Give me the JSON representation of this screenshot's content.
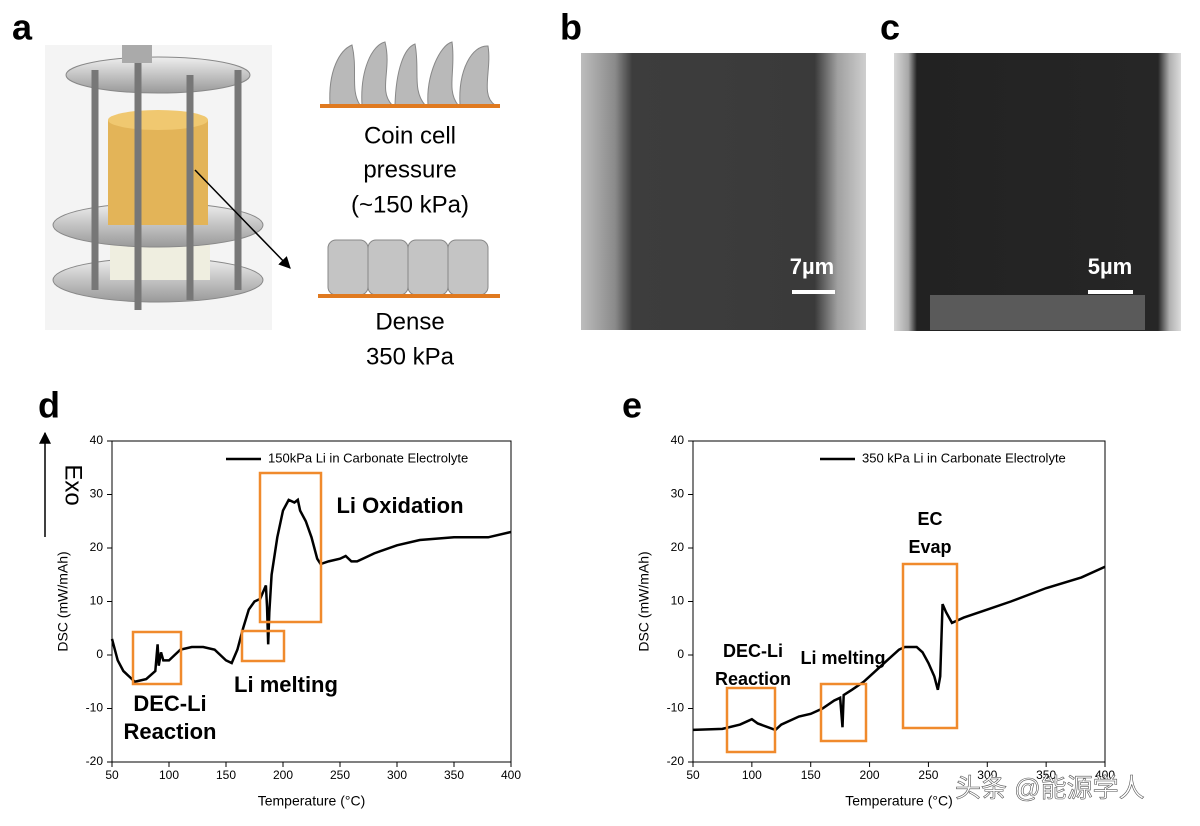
{
  "panel_labels": [
    "a",
    "b",
    "c",
    "d",
    "e"
  ],
  "panel_a": {
    "top_label": [
      "Coin cell",
      "pressure",
      "(~150 kPa)"
    ],
    "bottom_label": [
      "Dense",
      "350 kPa"
    ]
  },
  "panel_b": {
    "scale_bar": "7µm"
  },
  "panel_c": {
    "scale_bar": "5µm"
  },
  "exo_label": "Exo",
  "watermark": "头条 @能源学人",
  "chart_data": [
    {
      "type": "line",
      "xlabel": "Temperature (°C)",
      "ylabel": "DSC (mW/mAh)",
      "xlim": [
        50,
        400
      ],
      "ylim": [
        -20,
        40
      ],
      "xticks": [
        50,
        100,
        150,
        200,
        250,
        300,
        350,
        400
      ],
      "yticks": [
        -20,
        -10,
        0,
        10,
        20,
        30,
        40
      ],
      "legend": "top right",
      "box_color": "#f08a2c",
      "series": [
        {
          "name": "150kPa Li in Carbonate Electrolyte",
          "color": "#000000",
          "x": [
            50,
            55,
            60,
            70,
            80,
            88,
            90,
            91,
            93,
            95,
            100,
            110,
            120,
            130,
            140,
            150,
            155,
            160,
            165,
            170,
            175,
            180,
            183,
            185,
            186,
            187,
            188,
            190,
            195,
            200,
            205,
            210,
            213,
            215,
            220,
            225,
            230,
            233,
            240,
            250,
            255,
            260,
            265,
            270,
            280,
            300,
            320,
            350,
            380,
            400
          ],
          "values": [
            3,
            -1,
            -3,
            -5,
            -4.5,
            -3,
            2,
            -2,
            0.5,
            -1,
            -1,
            1,
            1.5,
            1.5,
            1,
            -1,
            -1.5,
            1,
            5,
            8.5,
            10,
            10.5,
            12,
            13,
            9,
            2,
            8,
            15,
            22,
            27,
            29,
            28.5,
            29,
            27,
            25,
            22,
            18,
            17,
            17.5,
            18,
            18.5,
            17.5,
            17.5,
            18,
            19,
            20.5,
            21.5,
            22,
            22,
            23
          ]
        }
      ],
      "annotations": [
        {
          "lines": [
            "DEC-Li",
            "Reaction"
          ]
        },
        {
          "lines": [
            "Li melting"
          ]
        },
        {
          "lines": [
            "Li Oxidation"
          ]
        }
      ]
    },
    {
      "type": "line",
      "xlabel": "Temperature (°C)",
      "ylabel": "DSC (mW/mAh)",
      "xlim": [
        50,
        400
      ],
      "ylim": [
        -20,
        40
      ],
      "xticks": [
        50,
        100,
        150,
        200,
        250,
        300,
        350,
        400
      ],
      "yticks": [
        -20,
        -10,
        0,
        10,
        20,
        30,
        40
      ],
      "legend": "top right",
      "box_color": "#f08a2c",
      "series": [
        {
          "name": "350 kPa Li in Carbonate Electrolyte",
          "color": "#000000",
          "x": [
            50,
            75,
            90,
            100,
            105,
            120,
            125,
            140,
            150,
            160,
            170,
            175,
            177,
            178,
            185,
            195,
            205,
            215,
            225,
            230,
            240,
            245,
            250,
            255,
            258,
            260,
            262,
            265,
            270,
            280,
            300,
            320,
            350,
            380,
            400
          ],
          "values": [
            -14,
            -13.8,
            -13,
            -12,
            -12.8,
            -14,
            -13,
            -11.5,
            -11,
            -10,
            -8.5,
            -8,
            -13.5,
            -7.5,
            -6.5,
            -5,
            -3,
            -1,
            1,
            1.5,
            1.5,
            0.5,
            -1.5,
            -4,
            -6.5,
            -4,
            9.5,
            8,
            6,
            7,
            8.5,
            10,
            12.5,
            14.5,
            16.5
          ]
        }
      ],
      "annotations": [
        {
          "lines": [
            "DEC-Li",
            "Reaction"
          ]
        },
        {
          "lines": [
            "Li melting"
          ]
        },
        {
          "lines": [
            "EC",
            "Evap"
          ]
        }
      ]
    }
  ]
}
